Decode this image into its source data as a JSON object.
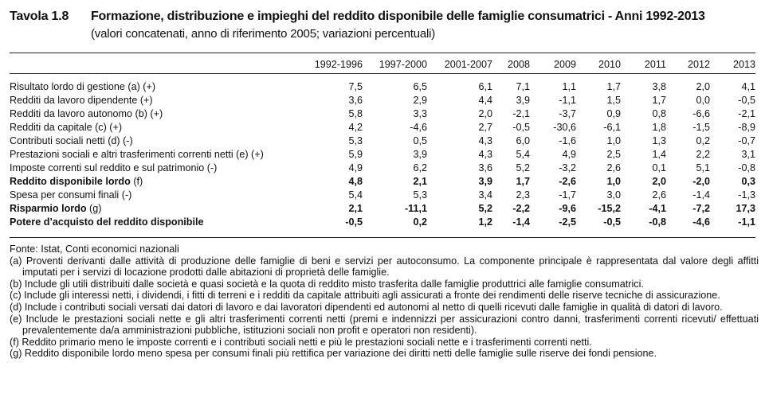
{
  "header": {
    "table_id": "Tavola 1.8",
    "title": "Formazione, distribuzione e impieghi del reddito disponibile delle famiglie consumatrici - Anni 1992-2013",
    "subtitle": "(valori concatenati, anno di riferimento 2005; variazioni percentuali)"
  },
  "columns": [
    "1992-1996",
    "1997-2000",
    "2001-2007",
    "2008",
    "2009",
    "2010",
    "2011",
    "2012",
    "2013"
  ],
  "rows": [
    {
      "label": "Risultato lordo di gestione (a) (+)",
      "values": [
        "7,5",
        "6,5",
        "6,1",
        "7,1",
        "1,1",
        "1,7",
        "3,8",
        "2,0",
        "4,1"
      ],
      "bold": false
    },
    {
      "label": "Redditi da lavoro dipendente (+)",
      "values": [
        "3,6",
        "2,9",
        "4,4",
        "3,9",
        "-1,1",
        "1,5",
        "1,7",
        "0,0",
        "-0,5"
      ],
      "bold": false
    },
    {
      "label": "Redditi da lavoro autonomo (b) (+)",
      "values": [
        "5,8",
        "3,3",
        "2,0",
        "-2,1",
        "-3,7",
        "0,9",
        "0,8",
        "-6,6",
        "-2,1"
      ],
      "bold": false
    },
    {
      "label": "Redditi da capitale (c) (+)",
      "values": [
        "4,2",
        "-4,6",
        "2,7",
        "-0,5",
        "-30,6",
        "-6,1",
        "1,8",
        "-1,5",
        "-8,9"
      ],
      "bold": false
    },
    {
      "label": "Contributi sociali netti (d) (-)",
      "values": [
        "5,3",
        "0,5",
        "4,3",
        "6,0",
        "-1,6",
        "1,0",
        "1,3",
        "0,2",
        "-0,7"
      ],
      "bold": false
    },
    {
      "label": "Prestazioni sociali e altri trasferimenti correnti netti (e) (+)",
      "values": [
        "5,9",
        "3,9",
        "4,3",
        "5,4",
        "4,9",
        "2,5",
        "1,4",
        "2,2",
        "3,1"
      ],
      "bold": false
    },
    {
      "label": "Imposte correnti sul reddito e sul patrimonio (-)",
      "values": [
        "4,9",
        "6,2",
        "3,6",
        "5,2",
        "-3,2",
        "2,6",
        "0,1",
        "5,1",
        "-0,8"
      ],
      "bold": false
    },
    {
      "label_bold": "Reddito  disponibile lordo",
      "label_rest": " (f)",
      "values": [
        "4,8",
        "2,1",
        "3,9",
        "1,7",
        "-2,6",
        "1,0",
        "2,0",
        "-2,0",
        "0,3"
      ],
      "bold": true
    },
    {
      "label": "Spesa per consumi finali  (-)",
      "values": [
        "5,4",
        "5,3",
        "3,4",
        "2,3",
        "-1,7",
        "3,0",
        "2,6",
        "-1,4",
        "-1,3"
      ],
      "bold": false
    },
    {
      "label_bold": "Risparmio lordo",
      "label_rest": " (g)",
      "values": [
        "2,1",
        "-11,1",
        "5,2",
        "-2,2",
        "-9,6",
        "-15,2",
        "-4,1",
        "-7,2",
        "17,3"
      ],
      "bold": true
    },
    {
      "label_bold": "Potere d’acquisto del reddito disponibile",
      "label_rest": "",
      "values": [
        "-0,5",
        "0,2",
        "1,2",
        "-1,4",
        "-2,5",
        "-0,5",
        "-0,8",
        "-4,6",
        "-1,1"
      ],
      "bold": true
    }
  ],
  "notes": {
    "source": "Fonte: Istat, Conti economici nazionali",
    "items": [
      "(a) Proventi derivanti dalle attività di produzione delle famiglie di beni e servizi per autoconsumo. La componente principale è rappresentata dal valore degli affitti imputati per i servizi di locazione prodotti dalle abitazioni di proprietà delle famiglie.",
      "(b) Include gli utili distribuiti dalle società e quasi società e la quota di reddito misto trasferita dalle famiglie produttrici alle famiglie consumatrici.",
      "(c) Include gli interessi netti, i dividendi, i fitti di terreni e i redditi da capitale attribuiti agli assicurati a fronte dei rendimenti delle riserve tecniche di assicurazione.",
      "(d) Include i contributi sociali versati dai datori di lavoro e dai lavoratori dipendenti ed autonomi al netto di quelli ricevuti dalle famiglie in qualità di datori di lavoro.",
      "(e) Include le prestazioni sociali nette e gli altri trasferimenti correnti netti (premi e indennizzi per assicurazioni contro danni, trasferimenti correnti ricevuti/ effettuati prevalentemente da/a amministrazioni pubbliche, istituzioni sociali non profit e operatori non residenti).",
      "(f) Reddito primario meno le imposte correnti e i contributi sociali netti e più le prestazioni sociali nette e i trasferimenti correnti netti.",
      "(g) Reddito disponibile lordo meno spesa per consumi finali più rettifica per variazione dei diritti netti delle famiglie sulle riserve dei fondi pensione."
    ]
  }
}
